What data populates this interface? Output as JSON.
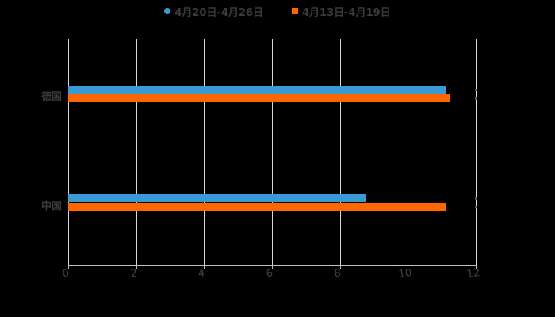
{
  "chart_data": {
    "type": "bar",
    "orientation": "horizontal",
    "title": "",
    "categories": [
      "德国",
      "中国"
    ],
    "series": [
      {
        "name": "4月20日-4月26日",
        "color": "#3a9ad4",
        "values": [
          11.14,
          8.76
        ]
      },
      {
        "name": "4月13日-4月19日",
        "color": "#ff6600",
        "values": [
          11.25,
          11.14
        ]
      }
    ],
    "xlabel": "",
    "ylabel": "",
    "xlim": [
      0,
      12
    ],
    "x_ticks": [
      0,
      2,
      4,
      6,
      8,
      10,
      12
    ],
    "grid": true,
    "legend_position": "top"
  },
  "legend": [
    {
      "label": "4月20日-4月26日",
      "color": "#3a9ad4",
      "shape": "circle"
    },
    {
      "label": "4月13日-4月19日",
      "color": "#ff6600",
      "shape": "square"
    }
  ],
  "axis": {
    "x_tick_labels": [
      "0",
      "2",
      "4",
      "6",
      "8",
      "10",
      "12"
    ],
    "category_labels": [
      "德国",
      "中国"
    ]
  },
  "colors": {
    "background": "#000000",
    "series1": "#3a9ad4",
    "series2": "#ff6600",
    "grid": "#d9d9d9",
    "text": "#3a3a3a"
  }
}
